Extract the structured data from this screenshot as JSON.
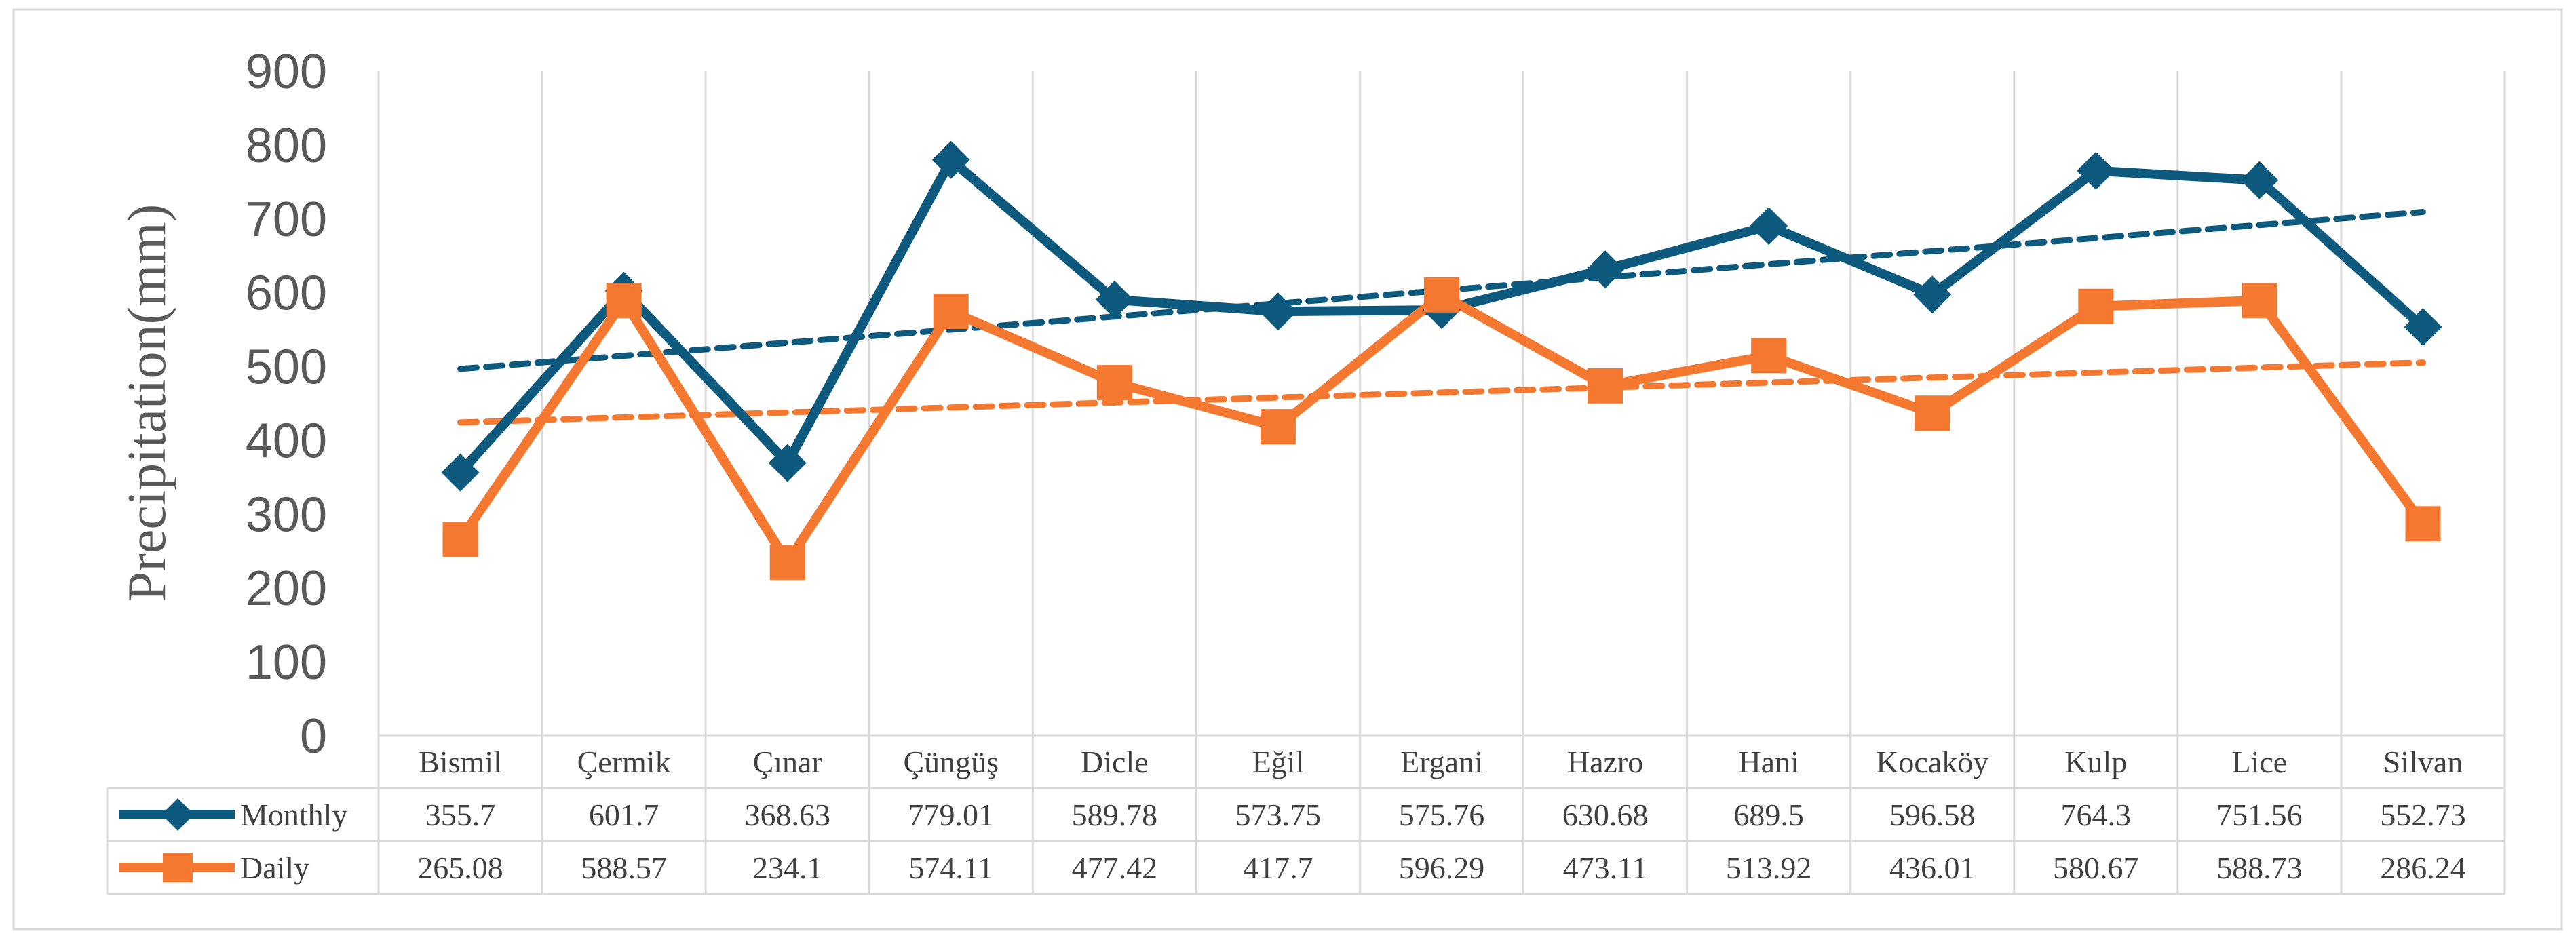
{
  "chart_data": {
    "type": "line",
    "ylabel": "Precipitation(mm)",
    "ylim": [
      0,
      900
    ],
    "yticks": [
      0,
      100,
      200,
      300,
      400,
      500,
      600,
      700,
      800,
      900
    ],
    "grid": "vertical",
    "categories": [
      "Bismil",
      "Çermik",
      "Çınar",
      "Çüngüş",
      "Dicle",
      "Eğil",
      "Ergani",
      "Hazro",
      "Hani",
      "Kocaköy",
      "Kulp",
      "Lice",
      "Silvan"
    ],
    "series": [
      {
        "name": "Monthly",
        "values": [
          355.7,
          601.7,
          368.63,
          779.01,
          589.78,
          573.75,
          575.76,
          630.68,
          689.5,
          596.58,
          764.3,
          751.56,
          552.73
        ],
        "labels": [
          "355.7",
          "601.7",
          "368.63",
          "779.01",
          "589.78",
          "573.75",
          "575.76",
          "630.68",
          "689.5",
          "596.58",
          "764.3",
          "751.56",
          "552.73"
        ],
        "color": "#0e5a7e",
        "marker": "diamond",
        "trendline": "linear"
      },
      {
        "name": "Daily",
        "values": [
          265.08,
          588.57,
          234.1,
          574.11,
          477.42,
          417.7,
          596.29,
          473.11,
          513.92,
          436.01,
          580.67,
          588.73,
          286.24
        ],
        "labels": [
          "265.08",
          "588.57",
          "234.1",
          "574.11",
          "477.42",
          "417.7",
          "596.29",
          "473.11",
          "513.92",
          "436.01",
          "580.67",
          "588.73",
          "286.24"
        ],
        "color": "#f4782f",
        "marker": "square",
        "trendline": "linear"
      }
    ],
    "legend": "data-table-left"
  }
}
